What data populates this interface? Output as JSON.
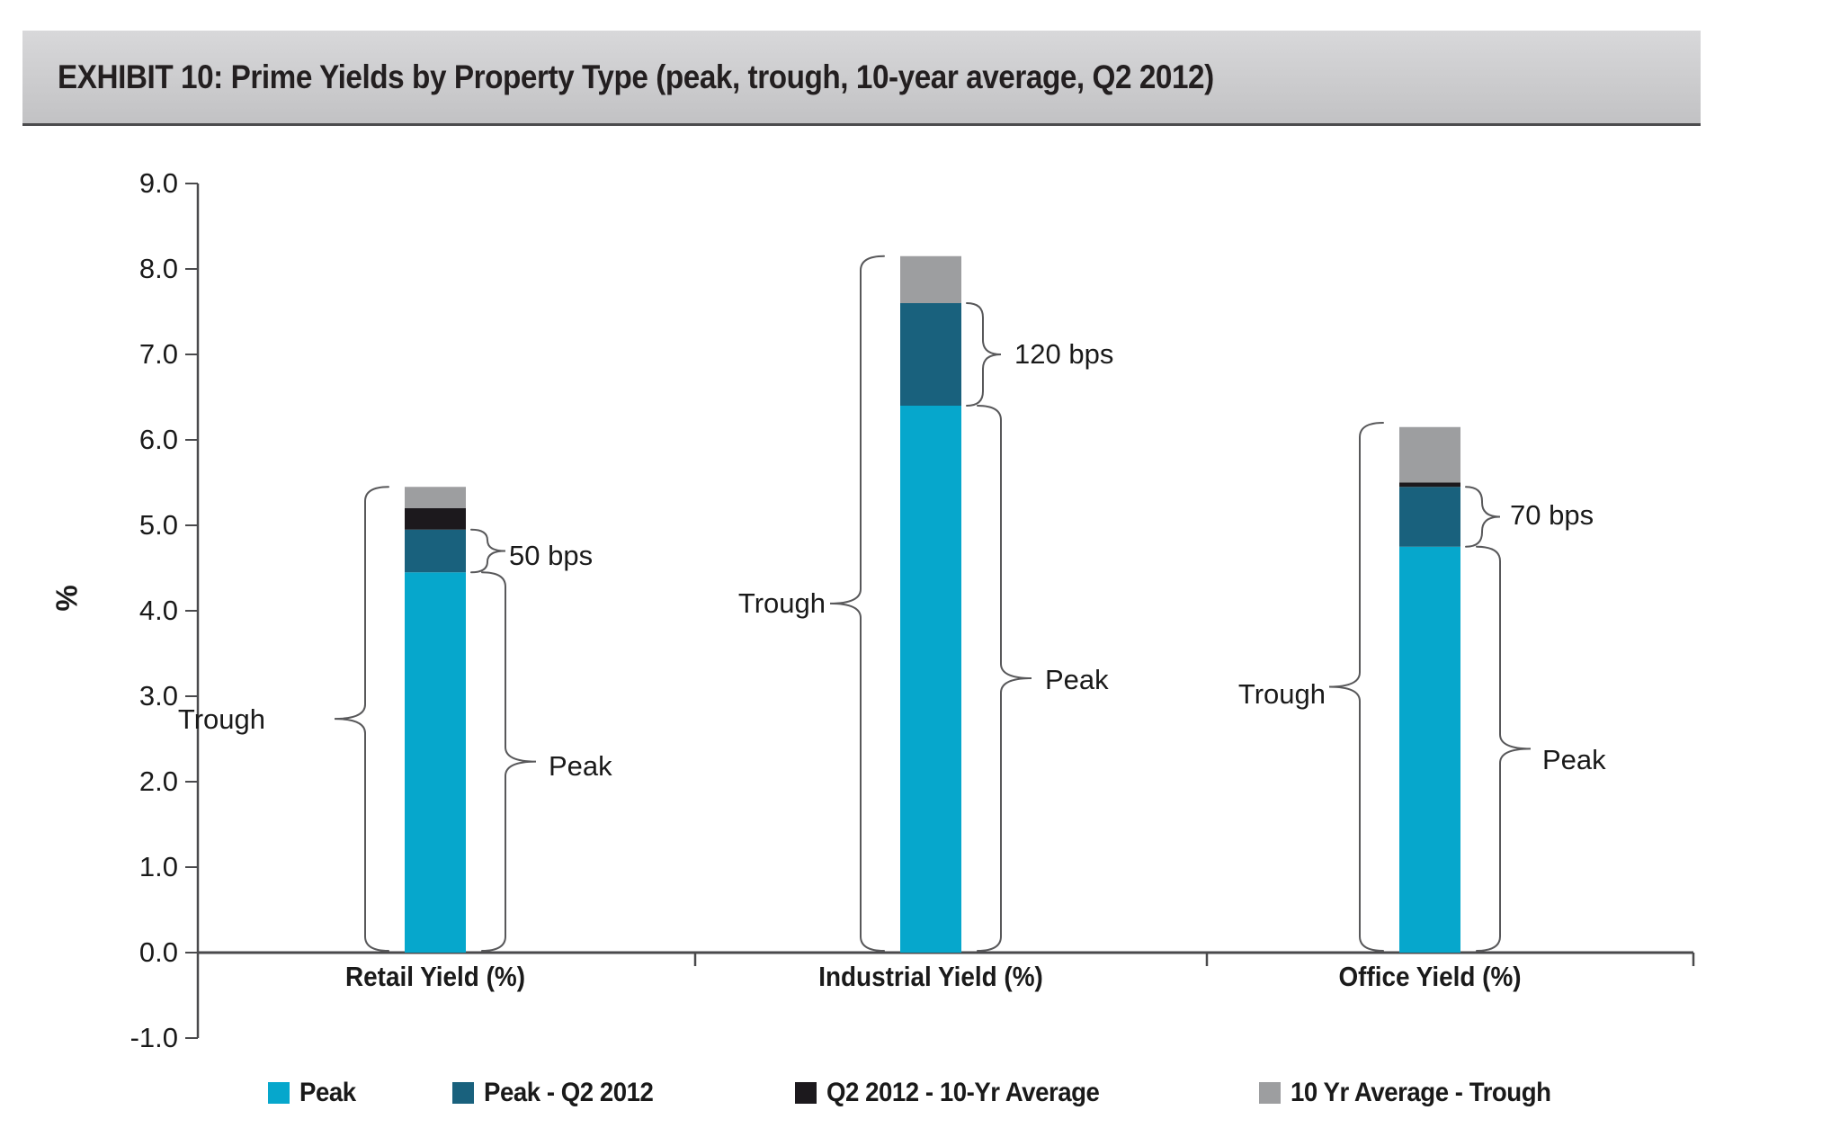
{
  "banner": {
    "title": "EXHIBIT 10: Prime Yields by Property Type (peak, trough, 10-year average, Q2 2012)"
  },
  "y_axis": {
    "label": "%",
    "ticks": [
      "9.0",
      "8.0",
      "7.0",
      "6.0",
      "5.0",
      "4.0",
      "3.0",
      "2.0",
      "1.0",
      "0.0",
      "-1.0"
    ]
  },
  "chart_data": {
    "type": "bar",
    "stacked": true,
    "title": "Prime Yields by Property Type (peak, trough, 10-year average, Q2 2012)",
    "xlabel": "",
    "ylabel": "%",
    "ylim": [
      -1.0,
      9.0
    ],
    "grid": false,
    "legend_position": "bottom",
    "categories": [
      "Retail Yield (%)",
      "Industrial Yield (%)",
      "Office Yield (%)"
    ],
    "series": [
      {
        "name": "Peak",
        "color": "#06a7cc",
        "values": [
          4.45,
          6.4,
          4.75
        ]
      },
      {
        "name": "Peak - Q2 2012",
        "color": "#19617d",
        "values": [
          0.5,
          1.2,
          0.7
        ]
      },
      {
        "name": "Q2 2012 - 10-Yr Average",
        "color": "#1c191d",
        "values": [
          0.25,
          0.0,
          0.05
        ]
      },
      {
        "name": "10 Yr Average - Trough",
        "color": "#9d9ea0",
        "values": [
          0.25,
          0.55,
          0.65
        ]
      }
    ],
    "stack_tops": {
      "peak": [
        4.45,
        6.4,
        4.75
      ],
      "q2_2012": [
        4.95,
        7.6,
        5.45
      ],
      "ten_yr_average": [
        5.2,
        7.6,
        5.5
      ],
      "trough": [
        5.45,
        8.15,
        6.2
      ]
    },
    "annotations": [
      {
        "text": "Trough",
        "bar": 0,
        "side": "left",
        "span": [
          0,
          5.45
        ],
        "small": false
      },
      {
        "text": "Peak",
        "bar": 0,
        "side": "right",
        "span": [
          0,
          4.45
        ],
        "small": false
      },
      {
        "text": "50 bps",
        "bar": 0,
        "side": "right",
        "span": [
          4.45,
          4.95
        ],
        "small": true
      },
      {
        "text": "Trough",
        "bar": 1,
        "side": "left",
        "span": [
          0,
          8.15
        ],
        "small": false
      },
      {
        "text": "Peak",
        "bar": 1,
        "side": "right",
        "span": [
          0,
          6.4
        ],
        "small": false
      },
      {
        "text": "120 bps",
        "bar": 1,
        "side": "right",
        "span": [
          6.4,
          7.6
        ],
        "small": true
      },
      {
        "text": "Trough",
        "bar": 2,
        "side": "left",
        "span": [
          0,
          6.2
        ],
        "small": false
      },
      {
        "text": "Peak",
        "bar": 2,
        "side": "right",
        "span": [
          0,
          4.75
        ],
        "small": false
      },
      {
        "text": "70 bps",
        "bar": 2,
        "side": "right",
        "span": [
          4.75,
          5.45
        ],
        "small": true
      }
    ]
  },
  "legend": {
    "items": [
      {
        "label": "Peak",
        "color": "#06a7cc"
      },
      {
        "label": "Peak - Q2 2012",
        "color": "#19617d"
      },
      {
        "label": "Q2 2012 - 10-Yr Average",
        "color": "#1c191d"
      },
      {
        "label": "10 Yr Average - Trough",
        "color": "#9d9ea0"
      }
    ]
  },
  "colors": {
    "axis": "#4a4a4c",
    "brace": "#58585a",
    "text": "#1a1a1a",
    "banner_top": "#d8d8da",
    "banner_bottom": "#c2c2c4",
    "banner_border": "#4b4b4d"
  }
}
